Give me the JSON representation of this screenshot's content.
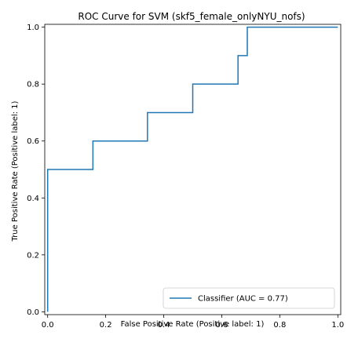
{
  "chart_data": {
    "type": "line",
    "title": "ROC Curve for SVM (skf5_female_onlyNYU_nofs)",
    "xlabel": "False Positive Rate (Positive label: 1)",
    "ylabel": "True Positive Rate (Positive label: 1)",
    "xlim": [
      -0.01,
      1.01
    ],
    "ylim": [
      -0.01,
      1.01
    ],
    "xticks": [
      "0.0",
      "0.2",
      "0.4",
      "0.6",
      "0.8",
      "1.0"
    ],
    "yticks": [
      "0.0",
      "0.2",
      "0.4",
      "0.6",
      "0.8",
      "1.0"
    ],
    "grid": false,
    "legend_position": "bottom-right",
    "series": [
      {
        "name": "Classifier (AUC = 0.77)",
        "color": "#1f77b4",
        "x": [
          0.0,
          0.0,
          0.0,
          0.156,
          0.156,
          0.344,
          0.344,
          0.5,
          0.5,
          0.656,
          0.656,
          0.688,
          0.688,
          1.0
        ],
        "y": [
          0.0,
          0.1,
          0.5,
          0.5,
          0.6,
          0.6,
          0.7,
          0.7,
          0.8,
          0.8,
          0.9,
          0.9,
          1.0,
          1.0
        ]
      }
    ]
  }
}
